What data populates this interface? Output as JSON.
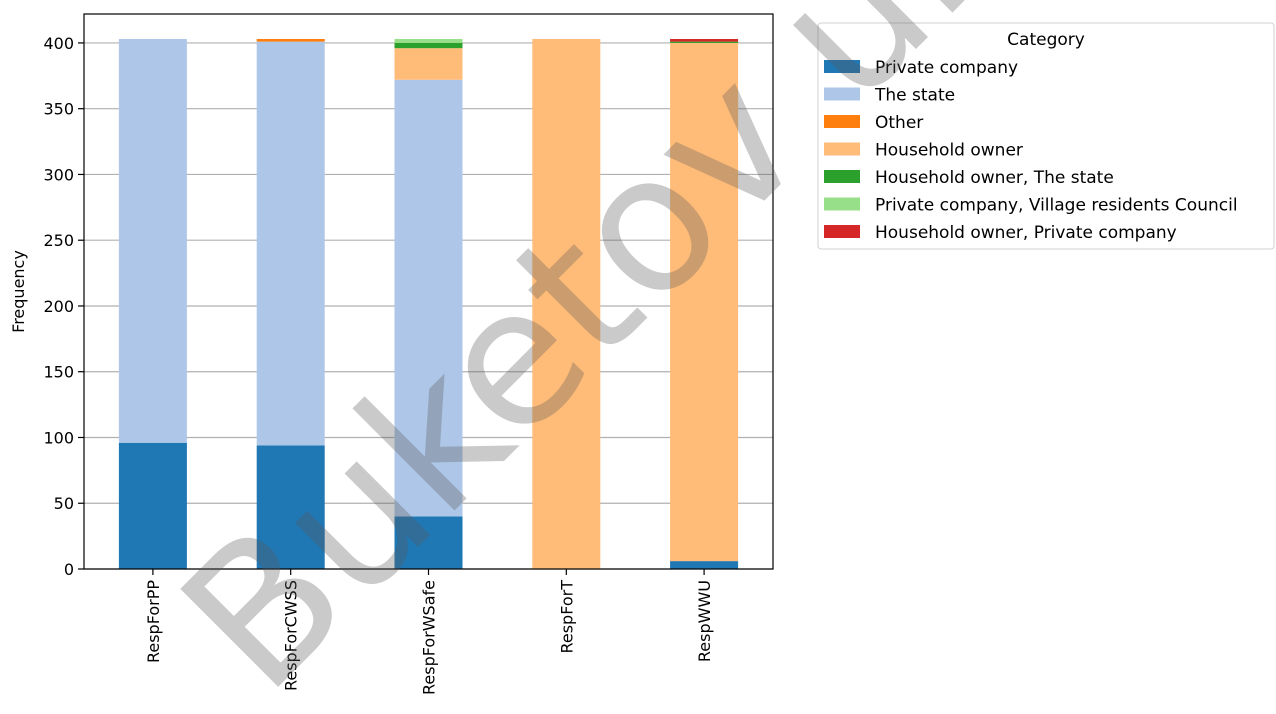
{
  "watermark": "Buketov unive",
  "chart_data": {
    "type": "bar",
    "stacked": true,
    "categories": [
      "RespForPP",
      "RespForCWSS",
      "RespForWSafe",
      "RespForT",
      "RespWWU"
    ],
    "ylabel": "Frequency",
    "ylim": [
      0,
      422
    ],
    "yticks": [
      0,
      50,
      100,
      150,
      200,
      250,
      300,
      350,
      400
    ],
    "grid": true,
    "legend_title": "Category",
    "legend_position": "outside-top-right",
    "series": [
      {
        "name": "Private company",
        "color": "#1f77b4",
        "values": [
          96,
          94,
          40,
          0,
          6
        ]
      },
      {
        "name": "The state",
        "color": "#aec7e8",
        "values": [
          307,
          307,
          332,
          0,
          0
        ]
      },
      {
        "name": "Other",
        "color": "#ff7f0e",
        "values": [
          0,
          2,
          0,
          0,
          0
        ]
      },
      {
        "name": "Household owner",
        "color": "#ffbb78",
        "values": [
          0,
          0,
          24,
          403,
          394
        ]
      },
      {
        "name": "Household owner, The state",
        "color": "#2ca02c",
        "values": [
          0,
          0,
          4,
          0,
          1
        ]
      },
      {
        "name": "Private company, Village residents Council",
        "color": "#98df8a",
        "values": [
          0,
          0,
          3,
          0,
          0
        ]
      },
      {
        "name": "Household owner, Private company",
        "color": "#d62728",
        "values": [
          0,
          0,
          0,
          0,
          2
        ]
      }
    ]
  }
}
